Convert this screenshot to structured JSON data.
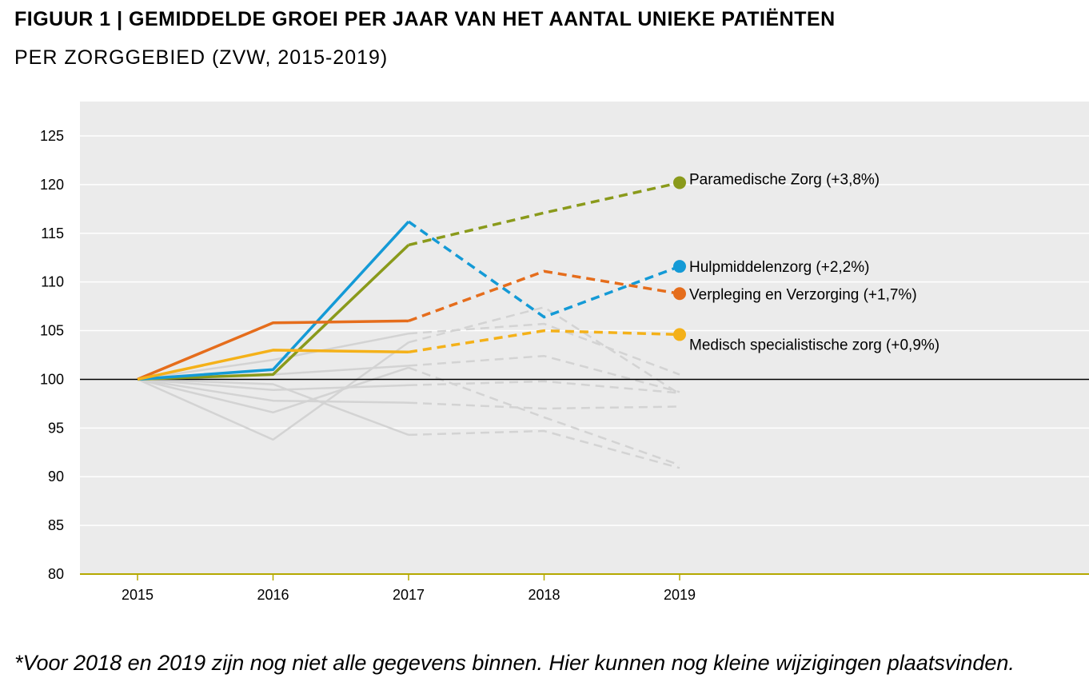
{
  "header": {
    "title": "FIGUUR 1 | GEMIDDELDE GROEI PER JAAR VAN HET AANTAL UNIEKE PATIËNTEN",
    "subtitle": "PER ZORGGEBIED (ZVW, 2015-2019)"
  },
  "footnote": "*Voor 2018 en 2019 zijn nog niet alle gegevens binnen. Hier kunnen nog kleine wijzigingen plaatsvinden.",
  "colors": {
    "plot_background": "#ebebeb",
    "gridline": "#ffffff",
    "axis": "#b5a900",
    "background_series": "#d3d3d3"
  },
  "chart_data": {
    "type": "line",
    "title": "",
    "xlabel": "",
    "ylabel": "",
    "x": [
      "2015",
      "2016",
      "2017",
      "2018",
      "2019"
    ],
    "ylim": [
      80,
      125
    ],
    "yticks": [
      80,
      85,
      90,
      95,
      100,
      105,
      110,
      115,
      120,
      125
    ],
    "reference_line": 100,
    "grid": true,
    "solid_until": "2017",
    "dashed_from": "2017",
    "highlighted_series": [
      {
        "name": "Paramedische Zorg (+3,8%)",
        "color": "#8a9a1b",
        "values": [
          100,
          100.5,
          113.8,
          117.1,
          120.2
        ]
      },
      {
        "name": "Hulpmiddelenzorg (+2,2%)",
        "color": "#149ad6",
        "values": [
          100,
          101,
          116.2,
          106.4,
          111.6
        ]
      },
      {
        "name": "Verpleging en Verzorging (+1,7%)",
        "color": "#e56d1c",
        "values": [
          100,
          105.8,
          106,
          111.1,
          108.8
        ]
      },
      {
        "name": "Medisch specialistische zorg (+0,9%)",
        "color": "#f4b119",
        "values": [
          100,
          103,
          102.8,
          105,
          104.6
        ]
      }
    ],
    "background_series": [
      {
        "values": [
          100,
          102,
          104.7,
          105.7,
          100.5
        ]
      },
      {
        "values": [
          100,
          93.8,
          103.8,
          107.4,
          98.5
        ]
      },
      {
        "values": [
          100,
          100.5,
          101.4,
          102.4,
          98.7
        ]
      },
      {
        "values": [
          100,
          98.9,
          99.4,
          99.8,
          98.6
        ]
      },
      {
        "values": [
          100,
          97.8,
          97.6,
          97,
          97.2
        ]
      },
      {
        "values": [
          100,
          96.6,
          101.2,
          96.1,
          91.2
        ]
      },
      {
        "values": [
          100,
          99.5,
          94.3,
          94.7,
          90.9
        ]
      }
    ]
  }
}
